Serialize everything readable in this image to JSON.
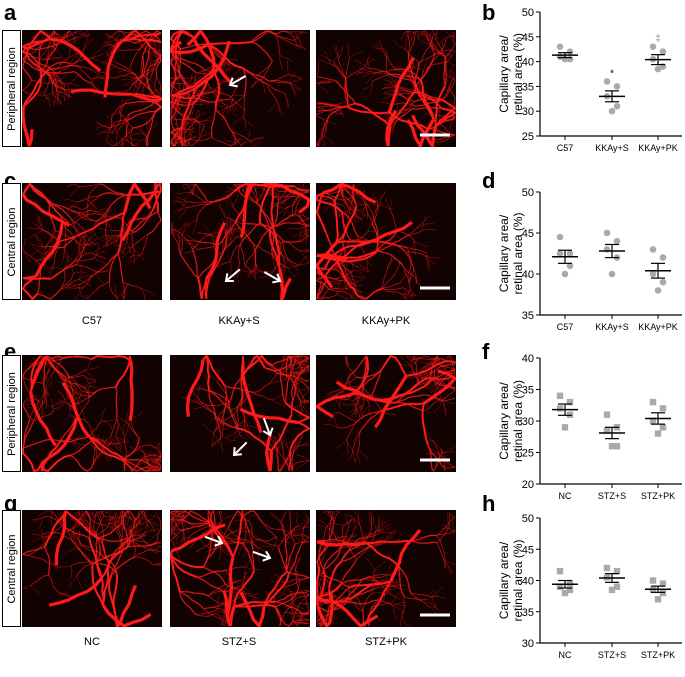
{
  "panel_letters": [
    "a",
    "b",
    "c",
    "d",
    "e",
    "f",
    "g",
    "h"
  ],
  "row_labels": {
    "a": "Peripheral region",
    "c": "Central region",
    "e": "Peripheral region",
    "g": "Central region"
  },
  "group_labels_top": [
    "C57",
    "KKAy+S",
    "KKAy+PK"
  ],
  "group_labels_bottom": [
    "NC",
    "STZ+S",
    "STZ+PK"
  ],
  "colors": {
    "vessel": "#ff1a1a",
    "background": "#120202",
    "points_circle": "#aaaaaa",
    "points_square": "#aaaaaa"
  },
  "icons": [
    "arrow-icon",
    "scale-bar"
  ],
  "chart_data": [
    {
      "panel": "b",
      "type": "scatter",
      "marker": "circle",
      "ylabel": "Capillary area/ retinal area (%)",
      "ylim": [
        25,
        50
      ],
      "yticks": [
        25,
        30,
        35,
        40,
        45,
        50
      ],
      "categories": [
        "C57",
        "KKAy+S",
        "KKAy+PK"
      ],
      "values": [
        [
          43,
          42,
          41,
          40.5,
          40.5
        ],
        [
          36,
          35,
          33,
          31,
          30
        ],
        [
          43,
          42,
          40.5,
          39,
          38.5
        ]
      ],
      "mean": [
        41.3,
        33.0,
        40.4
      ],
      "sem": [
        0.5,
        1.1,
        1.0
      ],
      "annotations": [
        "",
        "*",
        "‡"
      ]
    },
    {
      "panel": "d",
      "type": "scatter",
      "marker": "circle",
      "ylabel": "Capillary area/ retinal area (%)",
      "ylim": [
        35,
        50
      ],
      "yticks": [
        35,
        40,
        45,
        50
      ],
      "categories": [
        "C57",
        "KKAy+S",
        "KKAy+PK"
      ],
      "values": [
        [
          44.5,
          42.5,
          42.5,
          41,
          40
        ],
        [
          45,
          44,
          43,
          42,
          40
        ],
        [
          43,
          42,
          40,
          39,
          38
        ]
      ],
      "mean": [
        42.1,
        42.8,
        40.4
      ],
      "sem": [
        0.8,
        0.8,
        0.9
      ],
      "annotations": [
        "",
        "",
        ""
      ]
    },
    {
      "panel": "f",
      "type": "scatter",
      "marker": "square",
      "ylabel": "Capillary area/ retinal area (%)",
      "ylim": [
        20,
        40
      ],
      "yticks": [
        20,
        25,
        30,
        35,
        40
      ],
      "categories": [
        "NC",
        "STZ+S",
        "STZ+PK"
      ],
      "values": [
        [
          34,
          33,
          32,
          31,
          29
        ],
        [
          31,
          29,
          28.5,
          26,
          26
        ],
        [
          33,
          32,
          30,
          29,
          28
        ]
      ],
      "mean": [
        31.8,
        28.1,
        30.4
      ],
      "sem": [
        0.9,
        0.9,
        0.9
      ],
      "annotations": [
        "",
        "",
        ""
      ]
    },
    {
      "panel": "h",
      "type": "scatter",
      "marker": "square",
      "ylabel": "Capillary area/ retinal area (%)",
      "ylim": [
        30,
        50
      ],
      "yticks": [
        30,
        35,
        40,
        45,
        50
      ],
      "categories": [
        "NC",
        "STZ+S",
        "STZ+PK"
      ],
      "values": [
        [
          41.5,
          39.5,
          39,
          38.5,
          38
        ],
        [
          42,
          41.5,
          40.5,
          39,
          38.5
        ],
        [
          40,
          39.5,
          38.5,
          38,
          37
        ]
      ],
      "mean": [
        39.4,
        40.4,
        38.6
      ],
      "sem": [
        0.6,
        0.7,
        0.5
      ],
      "annotations": [
        "",
        "",
        ""
      ]
    }
  ]
}
